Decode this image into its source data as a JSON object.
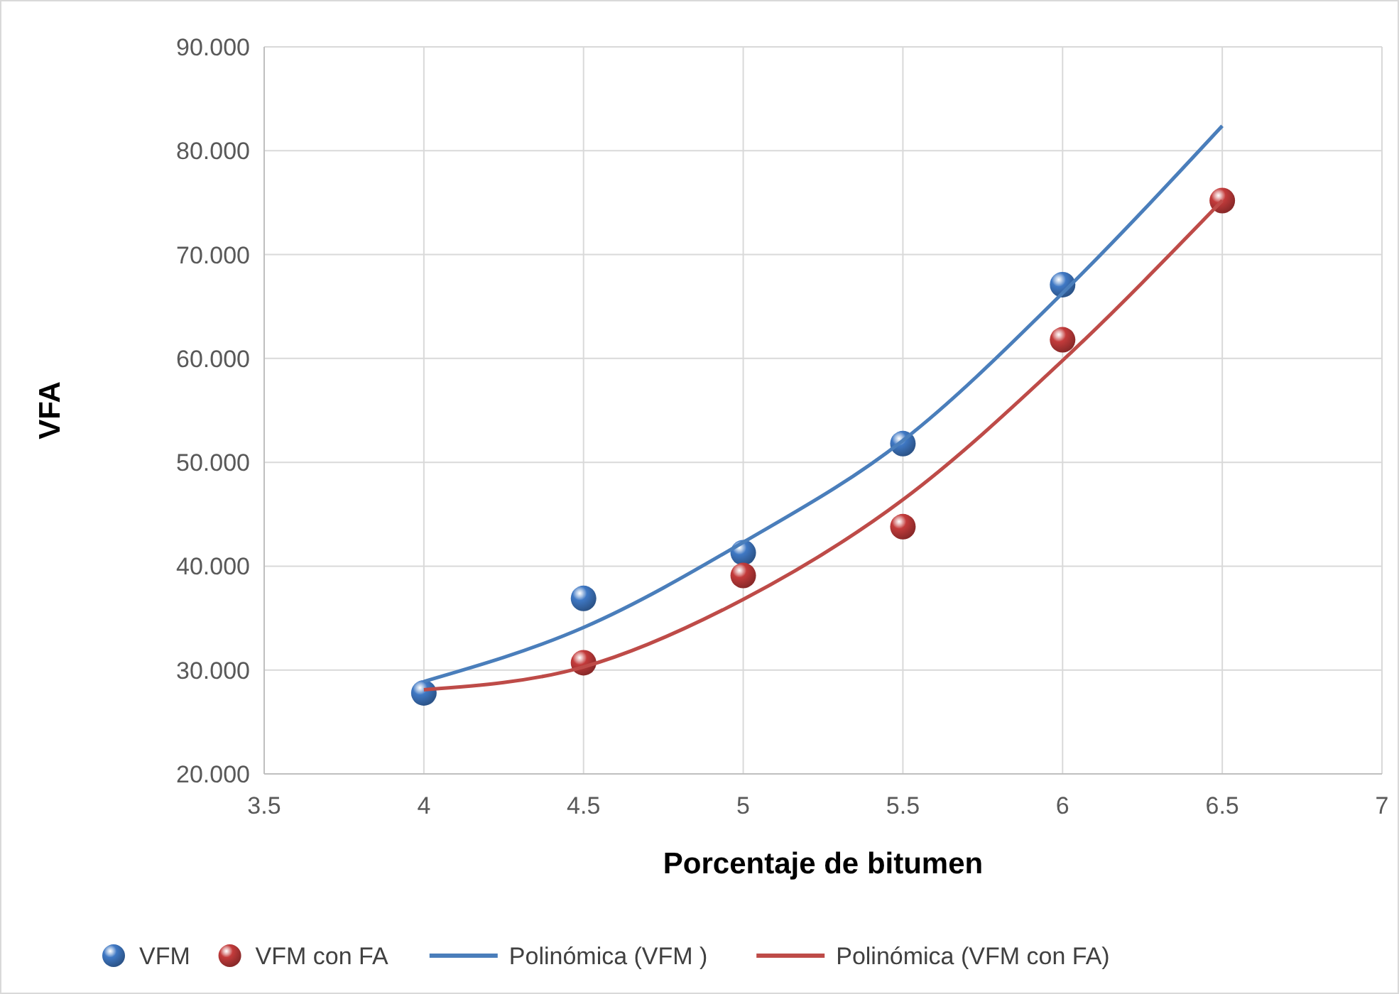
{
  "chart_data": {
    "type": "scatter",
    "xlabel": "Porcentaje de bitumen",
    "ylabel": "VFA",
    "xlim": [
      3.5,
      7
    ],
    "xticks": [
      3.5,
      4,
      4.5,
      5,
      5.5,
      6,
      6.5,
      7
    ],
    "ylim": [
      20,
      90
    ],
    "yticks": [
      {
        "value": 20,
        "label": "20.000"
      },
      {
        "value": 30,
        "label": "30.000"
      },
      {
        "value": 40,
        "label": "40.000"
      },
      {
        "value": 50,
        "label": "50.000"
      },
      {
        "value": 60,
        "label": "60.000"
      },
      {
        "value": 70,
        "label": "70.000"
      },
      {
        "value": 80,
        "label": "80.000"
      },
      {
        "value": 90,
        "label": "90.000"
      }
    ],
    "grid": true,
    "legend": "bottom",
    "series": [
      {
        "name": "VFM",
        "color": "#3f78c4",
        "marker": "circle",
        "x": [
          4,
          4.5,
          5,
          5.5,
          6
        ],
        "values": [
          27.8,
          36.9,
          41.3,
          51.8,
          67.1
        ]
      },
      {
        "name": "VFM  con FA",
        "color": "#c33b3b",
        "marker": "circle",
        "x": [
          4.5,
          5,
          5.5,
          6,
          6.5
        ],
        "values": [
          30.7,
          39.1,
          43.8,
          61.8,
          75.2
        ]
      },
      {
        "name": "Polinómica (VFM )",
        "type": "line",
        "marker": "none",
        "color": "#4a7ebb",
        "x": [
          4,
          4.5,
          5,
          5.5,
          6,
          6.5
        ],
        "values": [
          28.9,
          34.1,
          42.3,
          52.1,
          66.3,
          82.4
        ]
      },
      {
        "name": "Polinómica (VFM  con FA)",
        "type": "line",
        "marker": "none",
        "color": "#be4b48",
        "x": [
          4,
          4.5,
          5,
          5.5,
          6,
          6.5
        ],
        "values": [
          28.1,
          30.3,
          36.8,
          46.4,
          59.8,
          75.2
        ]
      }
    ]
  }
}
